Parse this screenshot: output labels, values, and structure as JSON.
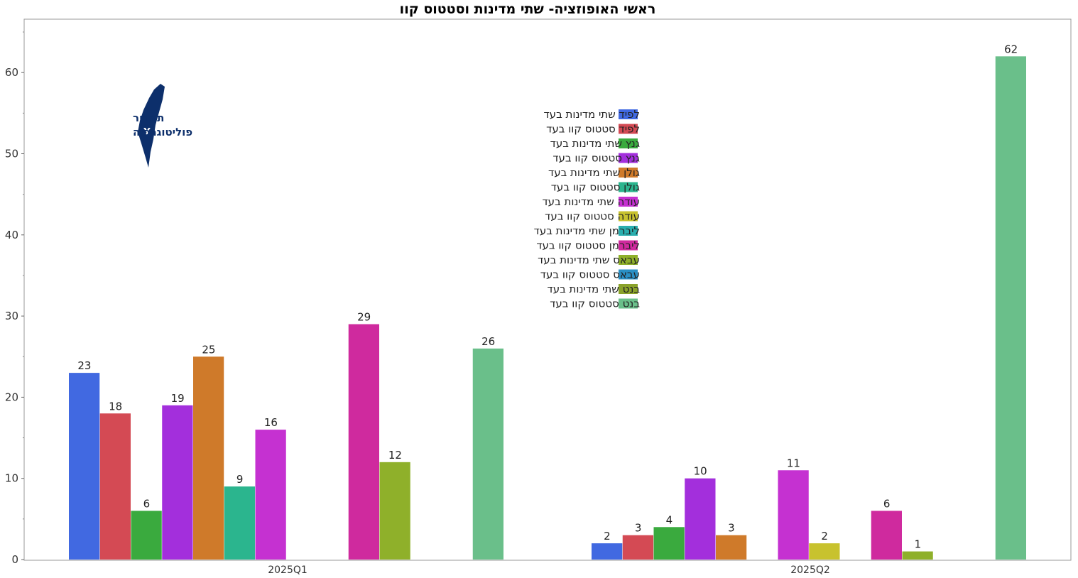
{
  "chart_data": {
    "type": "bar",
    "title": "ראשי האופוזציה- שתי מדינות וסטטוס קוו",
    "xlabel": "",
    "ylabel": "",
    "ylim": [
      0,
      66
    ],
    "yticks": [
      0,
      10,
      20,
      30,
      40,
      50,
      60
    ],
    "grid": false,
    "legend_position": "center-top",
    "categories": [
      "2025Q1",
      "2025Q2"
    ],
    "series": [
      {
        "name": "לפיד שתי מדינות בעד",
        "color": "#4169e1",
        "values": [
          23,
          2
        ]
      },
      {
        "name": "לפיד סטטוס קוו בעד",
        "color": "#d44a54",
        "values": [
          18,
          3
        ]
      },
      {
        "name": "גנץ שתי מדינות בעד",
        "color": "#3aaa3e",
        "values": [
          6,
          4
        ]
      },
      {
        "name": "גנץ סטטוס קוו בעד",
        "color": "#a32fdc",
        "values": [
          19,
          10
        ]
      },
      {
        "name": "גולן שתי מדינות בעד",
        "color": "#cf7a2a",
        "values": [
          25,
          3
        ]
      },
      {
        "name": "גולן סטטוס קוו בעד",
        "color": "#2bb58e",
        "values": [
          9,
          null
        ]
      },
      {
        "name": "עודה שתי מדינות בעד",
        "color": "#c531d1",
        "values": [
          16,
          11
        ]
      },
      {
        "name": "עודה סטטוס קוו בעד",
        "color": "#c8c22e",
        "values": [
          null,
          2
        ]
      },
      {
        "name": "ליברמן   שתי מדינות בעד",
        "color": "#2aaeae",
        "values": [
          null,
          null
        ]
      },
      {
        "name": "ליברמן   סטטוס קוו בעד",
        "color": "#cf2a9e",
        "values": [
          29,
          6
        ]
      },
      {
        "name": "עבאס שתי מדינות בעד",
        "color": "#8fb02a",
        "values": [
          12,
          1
        ]
      },
      {
        "name": "עבאס סטטוס קוו בעד",
        "color": "#2a8fc4",
        "values": [
          null,
          null
        ]
      },
      {
        "name": "בנט שתי מדינות בעד",
        "color": "#8aa22a",
        "values": [
          null,
          null
        ]
      },
      {
        "name": "בנט סטטוס קוו בעד",
        "color": "#6abf8a",
        "values": [
          26,
          62
        ]
      }
    ]
  },
  "logo": {
    "line1": "תמרור",
    "line2": "פוליטוגרפיה",
    "color": "#0d2f6b"
  }
}
